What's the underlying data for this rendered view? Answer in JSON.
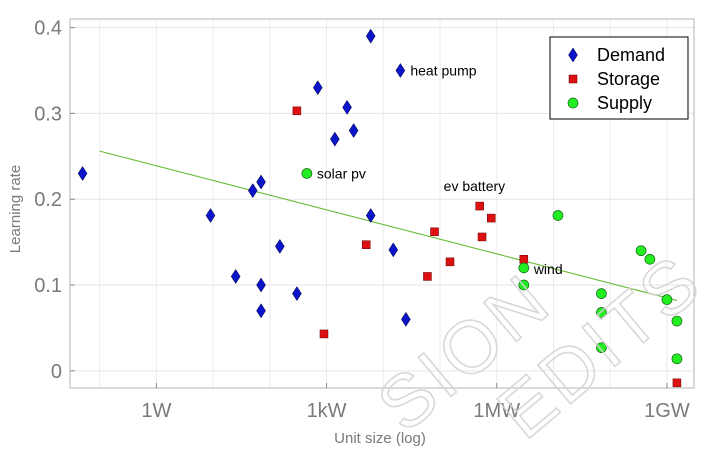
{
  "watermark": {
    "line1": "SION",
    "line2": "EDITS"
  },
  "chart_data": {
    "type": "scatter",
    "xlabel": "Unit size (log)",
    "ylabel": "Learning rate",
    "x_scale": "log",
    "xlim_watts": [
      0.03,
      3000000000
    ],
    "ylim": [
      -0.02,
      0.41
    ],
    "x_ticks": [
      {
        "value": 1,
        "label": "1W"
      },
      {
        "value": 1000,
        "label": "1kW"
      },
      {
        "value": 1000000,
        "label": "1MW"
      },
      {
        "value": 1000000000,
        "label": "1GW"
      }
    ],
    "y_ticks": [
      {
        "value": 0,
        "label": "0"
      },
      {
        "value": 0.1,
        "label": "0.1"
      },
      {
        "value": 0.2,
        "label": "0.2"
      },
      {
        "value": 0.3,
        "label": "0.3"
      },
      {
        "value": 0.4,
        "label": "0.4"
      }
    ],
    "grid": true,
    "legend_position": "top-right",
    "series": [
      {
        "name": "Demand",
        "marker": "diamond",
        "color": "#0a14c8",
        "points": [
          {
            "x": 0.05,
            "y": 0.23
          },
          {
            "x": 9,
            "y": 0.181
          },
          {
            "x": 25,
            "y": 0.11
          },
          {
            "x": 50,
            "y": 0.21
          },
          {
            "x": 70,
            "y": 0.22
          },
          {
            "x": 70,
            "y": 0.1
          },
          {
            "x": 70,
            "y": 0.07
          },
          {
            "x": 150,
            "y": 0.145
          },
          {
            "x": 300,
            "y": 0.09
          },
          {
            "x": 700,
            "y": 0.33
          },
          {
            "x": 1400,
            "y": 0.27
          },
          {
            "x": 2300,
            "y": 0.307
          },
          {
            "x": 3000,
            "y": 0.28
          },
          {
            "x": 6000,
            "y": 0.39
          },
          {
            "x": 6000,
            "y": 0.181
          },
          {
            "x": 15000,
            "y": 0.141
          },
          {
            "x": 20000,
            "y": 0.35
          },
          {
            "x": 25000,
            "y": 0.06
          }
        ]
      },
      {
        "name": "Storage",
        "marker": "square",
        "color": "#dd1111",
        "points": [
          {
            "x": 300,
            "y": 0.303
          },
          {
            "x": 900,
            "y": 0.043
          },
          {
            "x": 5000,
            "y": 0.147
          },
          {
            "x": 60000,
            "y": 0.11
          },
          {
            "x": 80000,
            "y": 0.162
          },
          {
            "x": 150000,
            "y": 0.127
          },
          {
            "x": 500000,
            "y": 0.192
          },
          {
            "x": 550000,
            "y": 0.156
          },
          {
            "x": 800000,
            "y": 0.178
          },
          {
            "x": 3000000,
            "y": 0.13
          },
          {
            "x": 1500000000,
            "y": -0.014
          }
        ]
      },
      {
        "name": "Supply",
        "marker": "circle",
        "color": "#22ee22",
        "points": [
          {
            "x": 450,
            "y": 0.23
          },
          {
            "x": 3000000,
            "y": 0.12
          },
          {
            "x": 3000000,
            "y": 0.1
          },
          {
            "x": 12000000,
            "y": 0.181
          },
          {
            "x": 70000000,
            "y": 0.09
          },
          {
            "x": 70000000,
            "y": 0.068
          },
          {
            "x": 70000000,
            "y": 0.027
          },
          {
            "x": 350000000,
            "y": 0.14
          },
          {
            "x": 500000000,
            "y": 0.13
          },
          {
            "x": 1000000000,
            "y": 0.083
          },
          {
            "x": 1500000000,
            "y": 0.058
          },
          {
            "x": 1500000000,
            "y": 0.014
          }
        ]
      }
    ],
    "trendline": {
      "color": "#66bb33",
      "x_start": 0.1,
      "y_start": 0.256,
      "x_end": 1500000000,
      "y_end": 0.082
    },
    "annotations": [
      {
        "text": "heat pump",
        "x": 20000,
        "y": 0.35
      },
      {
        "text": "solar pv",
        "x": 450,
        "y": 0.23
      },
      {
        "text": "ev battery",
        "x": 500000,
        "y": 0.192
      },
      {
        "text": "wind",
        "x": 3000000,
        "y": 0.12
      }
    ]
  }
}
